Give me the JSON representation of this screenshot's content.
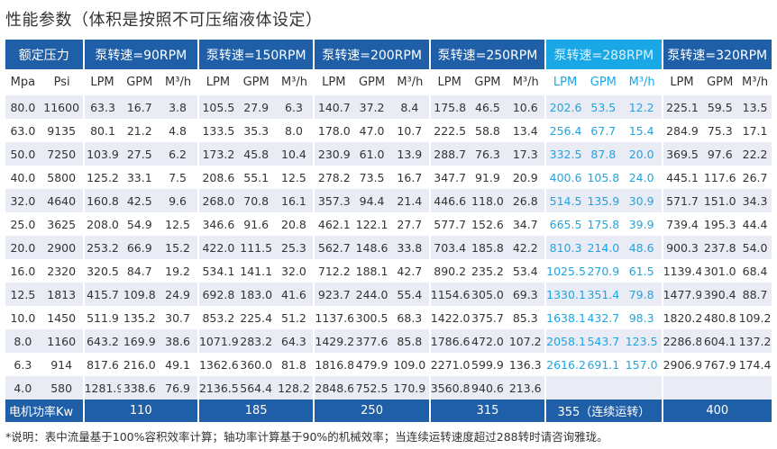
{
  "title": "性能参数（体积是按照不可压缩液体设定）",
  "groups": [
    "额定压力",
    "泵转速=90RPM",
    "泵转速=150RPM",
    "泵转速=200RPM",
    "泵转速=250RPM",
    "泵转速=288RPM",
    "泵转速=320RPM"
  ],
  "units": [
    "Mpa",
    "Psi",
    "LPM",
    "GPM",
    "M³/h",
    "LPM",
    "GPM",
    "M³/h",
    "LPM",
    "GPM",
    "M³/h",
    "LPM",
    "GPM",
    "M³/h",
    "LPM",
    "GPM",
    "M³/h",
    "LPM",
    "GPM",
    "M³/h"
  ],
  "rows": [
    [
      "80.0",
      "11600",
      "63.3",
      "16.7",
      "3.8",
      "105.5",
      "27.9",
      "6.3",
      "140.7",
      "37.2",
      "8.4",
      "175.8",
      "46.5",
      "10.6",
      "202.6",
      "53.5",
      "12.2",
      "225.1",
      "59.5",
      "13.5"
    ],
    [
      "63.0",
      "9135",
      "80.1",
      "21.2",
      "4.8",
      "133.5",
      "35.3",
      "8.0",
      "178.0",
      "47.0",
      "10.7",
      "222.5",
      "58.8",
      "13.4",
      "256.4",
      "67.7",
      "15.4",
      "284.9",
      "75.3",
      "17.1"
    ],
    [
      "50.0",
      "7250",
      "103.9",
      "27.5",
      "6.2",
      "173.2",
      "45.8",
      "10.4",
      "230.9",
      "61.0",
      "13.9",
      "288.7",
      "76.3",
      "17.3",
      "332.5",
      "87.8",
      "20.0",
      "369.5",
      "97.6",
      "22.2"
    ],
    [
      "40.0",
      "5800",
      "125.2",
      "33.1",
      "7.5",
      "208.6",
      "55.1",
      "12.5",
      "278.2",
      "73.5",
      "16.7",
      "347.7",
      "91.9",
      "20.9",
      "400.6",
      "105.8",
      "24.0",
      "445.1",
      "117.6",
      "26.7"
    ],
    [
      "32.0",
      "4640",
      "160.8",
      "42.5",
      "9.6",
      "268.0",
      "70.8",
      "16.1",
      "357.3",
      "94.4",
      "21.4",
      "446.6",
      "118.0",
      "26.8",
      "514.5",
      "135.9",
      "30.9",
      "571.7",
      "151.0",
      "34.3"
    ],
    [
      "25.0",
      "3625",
      "208.0",
      "54.9",
      "12.5",
      "346.6",
      "91.6",
      "20.8",
      "462.1",
      "122.1",
      "27.7",
      "577.7",
      "152.6",
      "34.7",
      "665.5",
      "175.8",
      "39.9",
      "739.4",
      "195.3",
      "44.4"
    ],
    [
      "20.0",
      "2900",
      "253.2",
      "66.9",
      "15.2",
      "422.0",
      "111.5",
      "25.3",
      "562.7",
      "148.6",
      "33.8",
      "703.4",
      "185.8",
      "42.2",
      "810.3",
      "214.0",
      "48.6",
      "900.3",
      "237.8",
      "54.0"
    ],
    [
      "16.0",
      "2320",
      "320.5",
      "84.7",
      "19.2",
      "534.1",
      "141.1",
      "32.0",
      "712.2",
      "188.1",
      "42.7",
      "890.2",
      "235.2",
      "53.4",
      "1025.5",
      "270.9",
      "61.5",
      "1139.4",
      "301.0",
      "68.4"
    ],
    [
      "12.5",
      "1813",
      "415.7",
      "109.8",
      "24.9",
      "692.8",
      "183.0",
      "41.6",
      "923.7",
      "244.0",
      "55.4",
      "1154.6",
      "305.0",
      "69.3",
      "1330.1",
      "351.4",
      "79.8",
      "1477.9",
      "390.4",
      "88.7"
    ],
    [
      "10.0",
      "1450",
      "511.9",
      "135.2",
      "30.7",
      "853.2",
      "225.4",
      "51.2",
      "1137.6",
      "300.5",
      "68.3",
      "1422.0",
      "375.7",
      "85.3",
      "1638.1",
      "432.7",
      "98.3",
      "1820.2",
      "480.8",
      "109.2"
    ],
    [
      "8.0",
      "1160",
      "643.2",
      "169.9",
      "38.6",
      "1071.9",
      "283.2",
      "64.3",
      "1429.2",
      "377.6",
      "85.8",
      "1786.6",
      "472.0",
      "107.2",
      "2058.1",
      "543.7",
      "123.5",
      "2286.8",
      "604.1",
      "137.2"
    ],
    [
      "6.3",
      "914",
      "817.6",
      "216.0",
      "49.1",
      "1362.6",
      "360.0",
      "81.8",
      "1816.8",
      "479.9",
      "109.0",
      "2271.0",
      "599.9",
      "136.3",
      "2616.2",
      "691.1",
      "157.0",
      "2906.9",
      "767.9",
      "174.4"
    ],
    [
      "4.0",
      "580",
      "1281.9",
      "338.6",
      "76.9",
      "2136.5",
      "564.4",
      "128.2",
      "2848.6",
      "752.5",
      "170.9",
      "3560.8",
      "940.6",
      "213.6",
      "",
      "",
      "",
      "",
      "",
      ""
    ]
  ],
  "footer": {
    "label": "电机功率Kw",
    "values": [
      "110",
      "185",
      "250",
      "315",
      "355（连续运转）",
      "400"
    ]
  },
  "note": "*说明：表中流量基于100%容积效率计算；轴功率计算基于90%的机械效率；当连续运转速度超过288转时请咨询雅珑。",
  "colors": {
    "header_bg": "#1f5fa8",
    "highlight": "#1aa7e6",
    "stripe": "#e9ebf5"
  }
}
